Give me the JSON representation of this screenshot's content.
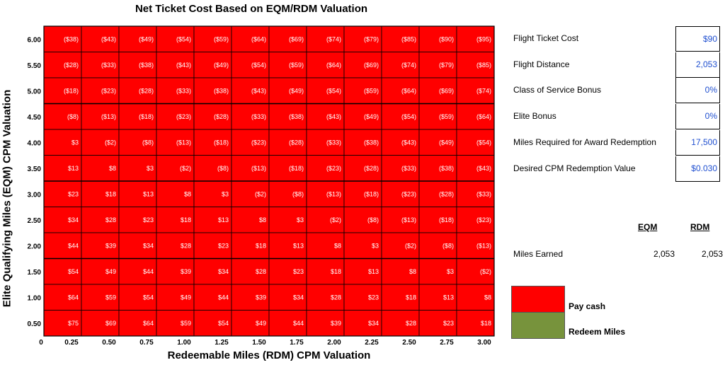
{
  "chart_data": {
    "type": "heatmap",
    "title": "Net Ticket Cost Based on EQM/RDM Valuation",
    "xlabel": "Redeemable Miles (RDM) CPM Valuation",
    "ylabel": "Elite Qualifying Miles (EQM) CPM Valuation",
    "x_origin_label": "0",
    "x_categories": [
      "0.25",
      "0.50",
      "0.75",
      "1.00",
      "1.25",
      "1.50",
      "1.75",
      "2.00",
      "2.25",
      "2.50",
      "2.75",
      "3.00"
    ],
    "y_categories": [
      "6.00",
      "5.50",
      "5.00",
      "4.50",
      "4.00",
      "3.50",
      "3.00",
      "2.50",
      "2.00",
      "1.50",
      "1.00",
      "0.50"
    ],
    "cells": [
      [
        "($38)",
        "($43)",
        "($49)",
        "($54)",
        "($59)",
        "($64)",
        "($69)",
        "($74)",
        "($79)",
        "($85)",
        "($90)",
        "($95)"
      ],
      [
        "($28)",
        "($33)",
        "($38)",
        "($43)",
        "($49)",
        "($54)",
        "($59)",
        "($64)",
        "($69)",
        "($74)",
        "($79)",
        "($85)"
      ],
      [
        "($18)",
        "($23)",
        "($28)",
        "($33)",
        "($38)",
        "($43)",
        "($49)",
        "($54)",
        "($59)",
        "($64)",
        "($69)",
        "($74)"
      ],
      [
        "($8)",
        "($13)",
        "($18)",
        "($23)",
        "($28)",
        "($33)",
        "($38)",
        "($43)",
        "($49)",
        "($54)",
        "($59)",
        "($64)"
      ],
      [
        "$3",
        "($2)",
        "($8)",
        "($13)",
        "($18)",
        "($23)",
        "($28)",
        "($33)",
        "($38)",
        "($43)",
        "($49)",
        "($54)"
      ],
      [
        "$13",
        "$8",
        "$3",
        "($2)",
        "($8)",
        "($13)",
        "($18)",
        "($23)",
        "($28)",
        "($33)",
        "($38)",
        "($43)"
      ],
      [
        "$23",
        "$18",
        "$13",
        "$8",
        "$3",
        "($2)",
        "($8)",
        "($13)",
        "($18)",
        "($23)",
        "($28)",
        "($33)"
      ],
      [
        "$34",
        "$28",
        "$23",
        "$18",
        "$13",
        "$8",
        "$3",
        "($2)",
        "($8)",
        "($13)",
        "($18)",
        "($23)"
      ],
      [
        "$44",
        "$39",
        "$34",
        "$28",
        "$23",
        "$18",
        "$13",
        "$8",
        "$3",
        "($2)",
        "($8)",
        "($13)"
      ],
      [
        "$54",
        "$49",
        "$44",
        "$39",
        "$34",
        "$28",
        "$23",
        "$18",
        "$13",
        "$8",
        "$3",
        "($2)"
      ],
      [
        "$64",
        "$59",
        "$54",
        "$49",
        "$44",
        "$39",
        "$34",
        "$28",
        "$23",
        "$18",
        "$13",
        "$8"
      ],
      [
        "$75",
        "$69",
        "$64",
        "$59",
        "$54",
        "$49",
        "$44",
        "$39",
        "$34",
        "$28",
        "$23",
        "$18"
      ]
    ],
    "cell_color": "#ff0000",
    "text_color": "#ffffff"
  },
  "panel": {
    "rows": [
      {
        "label": "Flight Ticket Cost",
        "value": "$90"
      },
      {
        "label": "Flight Distance",
        "value": "2,053"
      },
      {
        "label": "Class of Service Bonus",
        "value": "0%"
      },
      {
        "label": "Elite Bonus",
        "value": "0%"
      },
      {
        "label": "Miles Required for Award Redemption",
        "value": "17,500"
      },
      {
        "label": "Desired CPM Redemption Value",
        "value": "$0.030"
      }
    ],
    "value_color": "#1f4fd0"
  },
  "earned": {
    "eqm_header": "EQM",
    "rdm_header": "RDM",
    "label": "Miles Earned",
    "eqm_value": "2,053",
    "rdm_value": "2,053"
  },
  "legend": {
    "pay_cash": {
      "label": "Pay cash",
      "color": "#ff0000"
    },
    "redeem": {
      "label": "Redeem Miles",
      "color": "#77933c"
    }
  }
}
